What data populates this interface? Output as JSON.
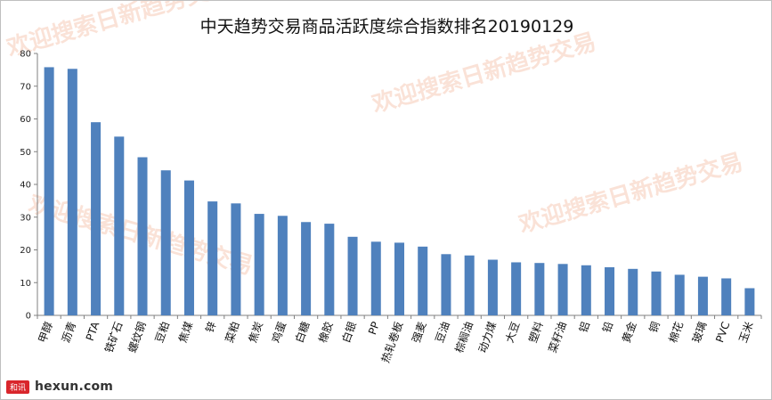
{
  "chart_data": {
    "type": "bar",
    "title": "中天趋势交易商品活跃度综合指数排名20190129",
    "xlabel": "",
    "ylabel": "",
    "ylim": [
      0,
      80
    ],
    "yticks": [
      0,
      10,
      20,
      30,
      40,
      50,
      60,
      70,
      80
    ],
    "grid": false,
    "legend": "none",
    "bar_color": "#4f81bd",
    "categories": [
      "甲醇",
      "沥青",
      "PTA",
      "铁矿石",
      "螺纹钢",
      "豆粕",
      "焦煤",
      "锌",
      "菜粕",
      "焦炭",
      "鸡蛋",
      "白糖",
      "橡胶",
      "白银",
      "PP",
      "热轧卷板",
      "强麦",
      "豆油",
      "棕榈油",
      "动力煤",
      "大豆",
      "塑料",
      "菜籽油",
      "铝",
      "铅",
      "黄金",
      "铜",
      "棉花",
      "玻璃",
      "PVC",
      "玉米"
    ],
    "values": [
      75.8,
      75.3,
      59.0,
      54.6,
      48.3,
      44.3,
      41.2,
      34.8,
      34.2,
      31.0,
      30.4,
      28.5,
      28.0,
      24.0,
      22.5,
      22.2,
      21.0,
      18.7,
      18.3,
      17.0,
      16.2,
      16.0,
      15.7,
      15.3,
      14.7,
      14.2,
      13.4,
      12.4,
      11.8,
      11.3,
      8.3
    ]
  },
  "watermarks": [
    "欢迎搜索日新趋势交易",
    "欢迎搜索日新趋势交易",
    "欢迎搜索日新趋势交易",
    "欢迎搜索日新趋势交易"
  ],
  "logo": {
    "badge": "和讯",
    "text": "hexun.com"
  }
}
